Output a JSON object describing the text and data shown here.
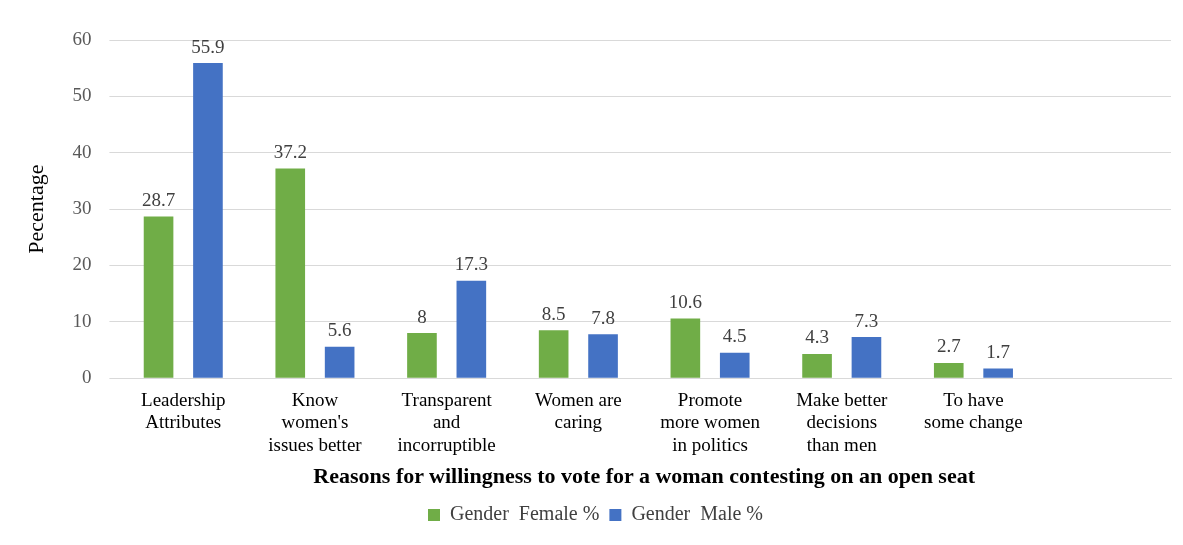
{
  "chart_data": {
    "type": "bar",
    "xlabel": "Reasons for willingness to vote for a woman contesting on an open seat",
    "ylabel": "Pecentage",
    "categories": [
      [
        "Leadership",
        "Attributes"
      ],
      [
        "Know",
        "women's",
        "issues better"
      ],
      [
        "Transparent",
        "and",
        "incorruptible"
      ],
      [
        "Women are",
        "caring"
      ],
      [
        "Promote",
        "more women",
        "in politics"
      ],
      [
        "Make better",
        "decisions",
        "than men"
      ],
      [
        "To have",
        "some change"
      ],
      null
    ],
    "series": [
      {
        "name": "Gender  Female %",
        "color": "#70ad47",
        "values": [
          28.7,
          37.2,
          8,
          8.5,
          10.6,
          4.3,
          2.7,
          null
        ]
      },
      {
        "name": "Gender  Male %",
        "color": "#4472c4",
        "values": [
          55.9,
          5.6,
          17.3,
          7.8,
          4.5,
          7.3,
          1.7,
          null
        ]
      }
    ],
    "ylim": [
      0,
      60
    ],
    "yticks": [
      0,
      10,
      20,
      30,
      40,
      50,
      60
    ],
    "grid": "y",
    "legend": "bottom",
    "data_labels": true
  }
}
